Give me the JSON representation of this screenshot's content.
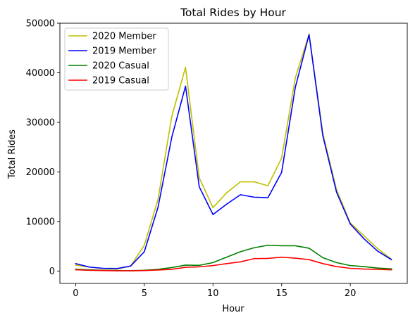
{
  "chart_data": {
    "type": "line",
    "title": "Total Rides by Hour",
    "xlabel": "Hour",
    "ylabel": "Total Rides",
    "xlim": [
      -1.15,
      24.15
    ],
    "ylim": [
      -2500,
      50000
    ],
    "xticks": [
      0,
      5,
      10,
      15,
      20
    ],
    "yticks": [
      0,
      10000,
      20000,
      30000,
      40000,
      50000
    ],
    "legend_position": "top-left",
    "grid": false,
    "x": [
      0,
      1,
      2,
      3,
      4,
      5,
      6,
      7,
      8,
      9,
      10,
      11,
      12,
      13,
      14,
      15,
      16,
      17,
      18,
      19,
      20,
      21,
      22,
      23
    ],
    "series": [
      {
        "name": "2020 Member",
        "color": "#bfbf00",
        "values": [
          1200,
          800,
          500,
          400,
          1000,
          5200,
          14500,
          31200,
          41100,
          18800,
          12800,
          15800,
          18000,
          18000,
          17200,
          22800,
          39000,
          47800,
          27800,
          16400,
          9700,
          7100,
          4500,
          2400
        ]
      },
      {
        "name": "2019 Member",
        "color": "#0000ff",
        "values": [
          1500,
          800,
          550,
          500,
          1000,
          3900,
          12900,
          27000,
          37300,
          17000,
          11400,
          13500,
          15400,
          14900,
          14800,
          19900,
          37100,
          47700,
          27300,
          15900,
          9500,
          6500,
          4000,
          2300
        ]
      },
      {
        "name": "2020 Casual",
        "color": "#008000",
        "values": [
          350,
          250,
          150,
          100,
          80,
          150,
          350,
          700,
          1200,
          1150,
          1700,
          2800,
          3900,
          4700,
          5200,
          5100,
          5100,
          4600,
          2700,
          1700,
          1100,
          900,
          600,
          450
        ]
      },
      {
        "name": "2019 Casual",
        "color": "#ff0000",
        "values": [
          250,
          150,
          100,
          50,
          50,
          100,
          200,
          350,
          750,
          850,
          1100,
          1500,
          1850,
          2500,
          2550,
          2800,
          2600,
          2300,
          1500,
          900,
          550,
          400,
          350,
          250
        ]
      }
    ]
  }
}
